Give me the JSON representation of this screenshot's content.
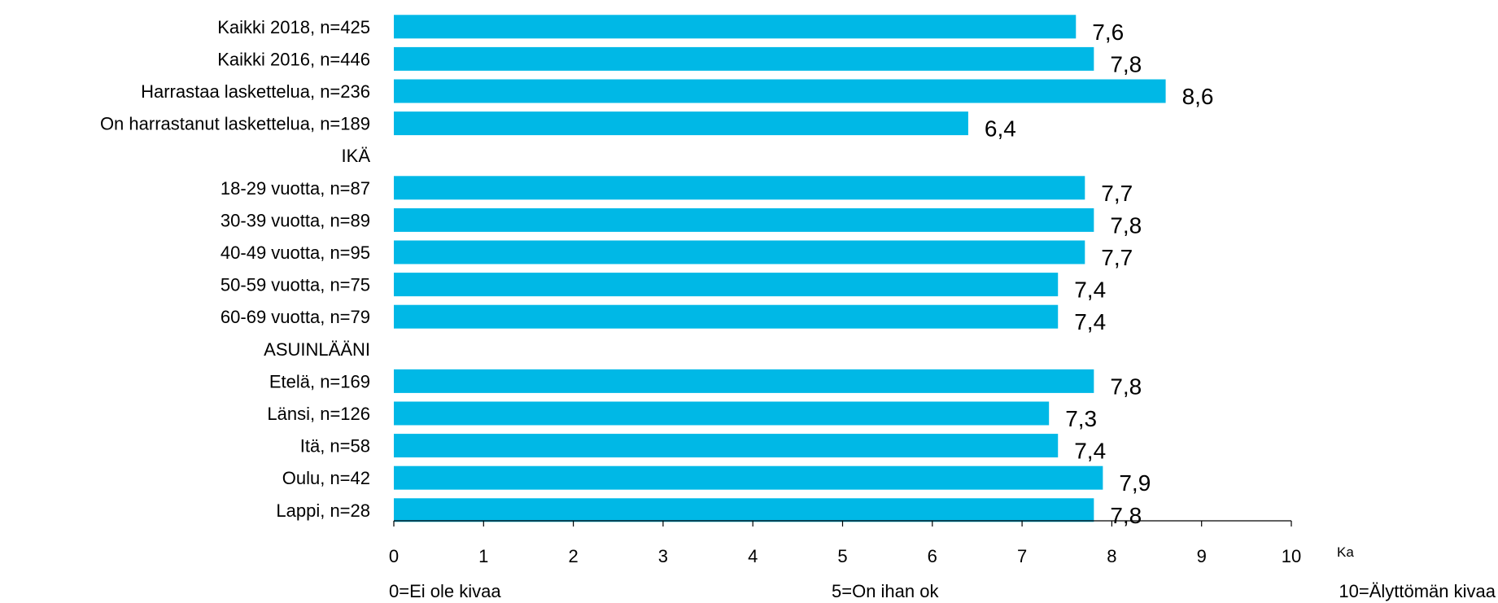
{
  "chart_data": {
    "type": "bar",
    "orientation": "horizontal",
    "categories": [
      "Kaikki 2018, n=425",
      "Kaikki 2016, n=446",
      "Harrastaa laskettelua, n=236",
      "On harrastanut laskettelua, n=189",
      "IKÄ",
      "18-29 vuotta, n=87",
      "30-39 vuotta, n=89",
      "40-49 vuotta, n=95",
      "50-59 vuotta, n=75",
      "60-69 vuotta, n=79",
      "ASUINLÄÄNI",
      "Etelä, n=169",
      "Länsi, n=126",
      "Itä, n=58",
      "Oulu, n=42",
      "Lappi, n=28"
    ],
    "values": [
      7.6,
      7.8,
      8.6,
      6.4,
      null,
      7.7,
      7.8,
      7.7,
      7.4,
      7.4,
      null,
      7.8,
      7.3,
      7.4,
      7.9,
      7.8
    ],
    "value_labels": [
      "7,6",
      "7,8",
      "8,6",
      "6,4",
      "",
      "7,7",
      "7,8",
      "7,7",
      "7,4",
      "7,4",
      "",
      "7,8",
      "7,3",
      "7,4",
      "7,9",
      "7,8"
    ],
    "xlim": [
      0,
      10
    ],
    "xticks": [
      "0",
      "1",
      "2",
      "3",
      "4",
      "5",
      "6",
      "7",
      "8",
      "9",
      "10"
    ],
    "xunit": "Ka",
    "scale_labels": [
      "0=Ei ole kivaa",
      "5=On ihan ok",
      "10=Älyttömän kivaa"
    ],
    "bar_color": "#00B8E6",
    "grid": false,
    "legend": "none"
  }
}
